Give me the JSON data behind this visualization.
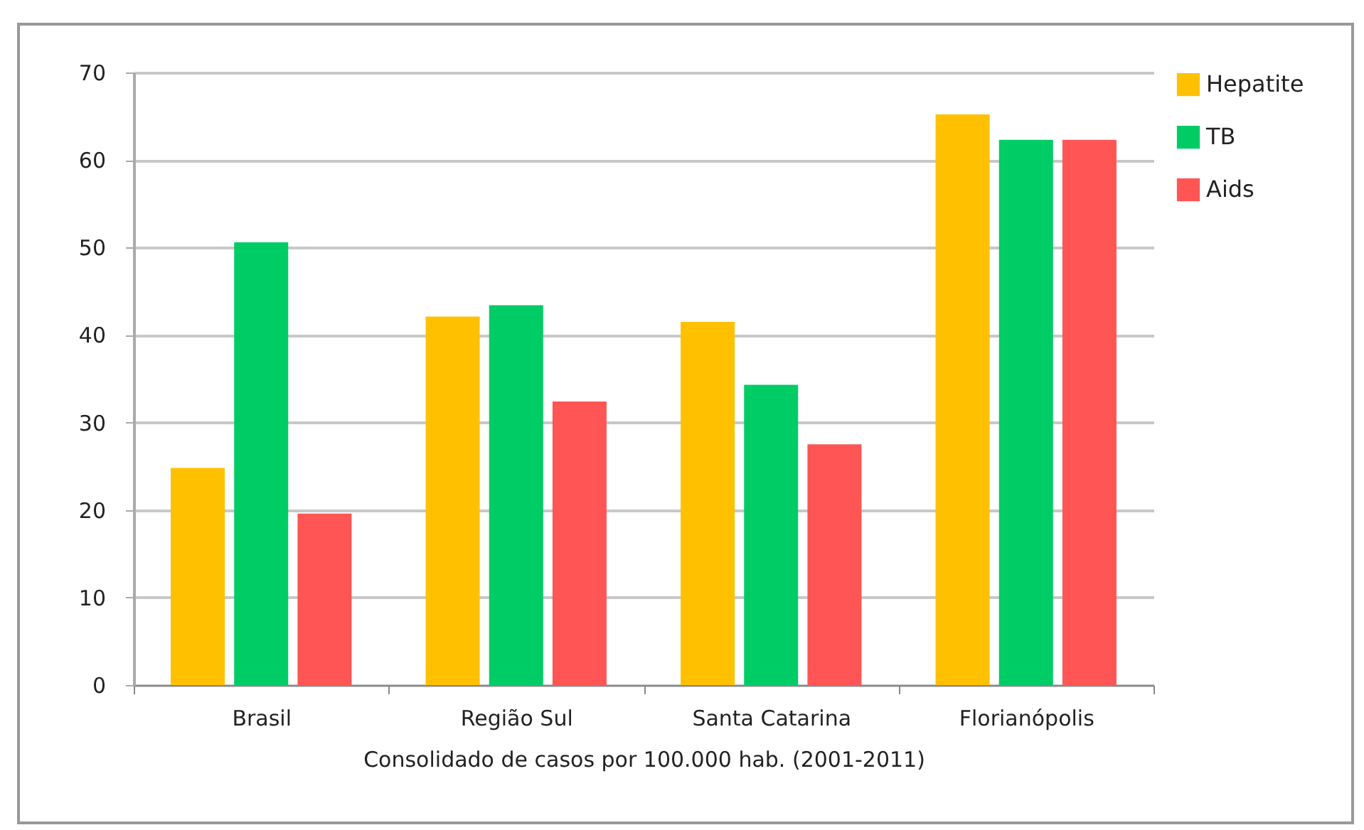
{
  "chart_data": {
    "type": "bar",
    "xlabel": "Consolidado de casos por 100.000 hab. (2001-2011)",
    "categories": [
      "Brasil",
      "Região Sul",
      "Santa Catarina",
      "Florianópolis"
    ],
    "series": [
      {
        "name": "Hepatite",
        "color": "#ffc000",
        "values": [
          24.8,
          42.1,
          41.5,
          65.2
        ]
      },
      {
        "name": "TB",
        "color": "#00cc66",
        "values": [
          50.6,
          43.4,
          34.3,
          62.3
        ]
      },
      {
        "name": "Aids",
        "color": "#ff5555",
        "values": [
          19.6,
          32.4,
          27.5,
          62.3
        ]
      }
    ],
    "ylim": [
      0,
      70
    ],
    "yticks": [
      0,
      10,
      20,
      30,
      40,
      50,
      60,
      70
    ],
    "grid": "y",
    "legend": "right"
  }
}
